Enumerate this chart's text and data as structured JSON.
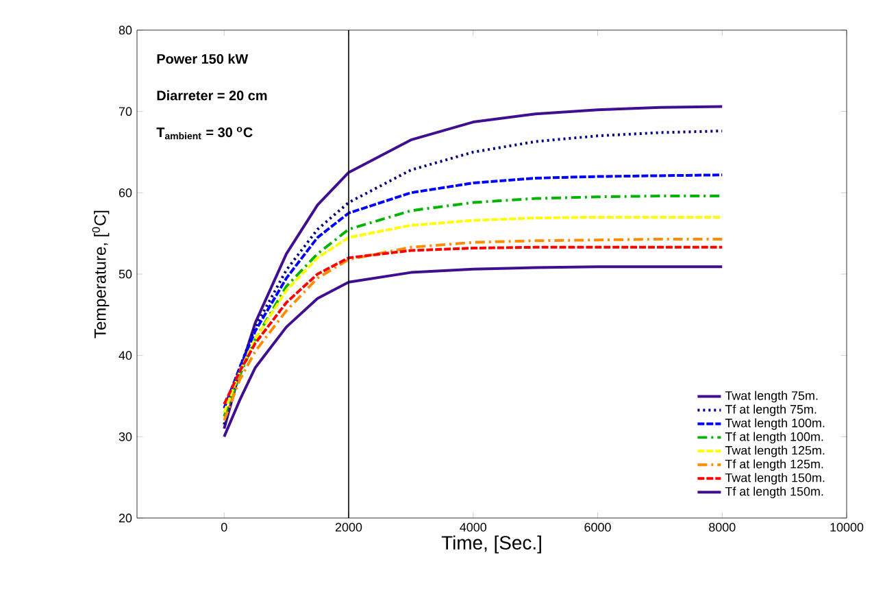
{
  "chart_data": {
    "type": "line",
    "xlabel": "Time, [Sec.]",
    "ylabel": "Temperature, [$^{0}$C]",
    "annotations": [
      "Power 150 kW",
      "Diarreter = 20 cm",
      "T$_{ambient}$ = 30 $^{o}$C"
    ],
    "x": [
      0,
      250,
      500,
      1000,
      1500,
      2000,
      3000,
      4000,
      5000,
      6000,
      7000,
      8000
    ],
    "series": [
      {
        "name": "Twat length 75m.",
        "color": "#3f0f8f",
        "line_style": "solid",
        "values": [
          31,
          38,
          44,
          52.5,
          58.5,
          62.5,
          66.5,
          68.7,
          69.7,
          70.2,
          70.5,
          70.6
        ]
      },
      {
        "name": "Tf at length 75m.",
        "color": "#000080",
        "line_style": "dotted",
        "values": [
          31.5,
          38.5,
          43.5,
          50.5,
          55.5,
          58.8,
          62.8,
          65,
          66.3,
          67,
          67.4,
          67.6
        ]
      },
      {
        "name": "Twat length 100m.",
        "color": "#0000ff",
        "line_style": "dashed",
        "values": [
          33.5,
          38.5,
          43,
          49.5,
          54.5,
          57.5,
          60,
          61.2,
          61.8,
          62,
          62.1,
          62.2
        ]
      },
      {
        "name": "Tf at length 100m.",
        "color": "#00b400",
        "line_style": "dashdot",
        "values": [
          32.5,
          37.5,
          42,
          48.5,
          52.5,
          55.5,
          57.8,
          58.8,
          59.3,
          59.5,
          59.6,
          59.6
        ]
      },
      {
        "name": "Twat length 125m.",
        "color": "#ffff00",
        "line_style": "dashed",
        "values": [
          33,
          38,
          42,
          48,
          52,
          54.5,
          56,
          56.6,
          56.9,
          57,
          57,
          57
        ]
      },
      {
        "name": "Tf at length 125m.",
        "color": "#ff8c00",
        "line_style": "dashdot",
        "values": [
          32,
          37,
          40.5,
          45.5,
          49.5,
          51.8,
          53.3,
          53.9,
          54.1,
          54.2,
          54.3,
          54.3
        ]
      },
      {
        "name": "Twat length 150m.",
        "color": "#ff0000",
        "line_style": "dashed",
        "values": [
          34,
          38,
          41.5,
          46.5,
          50,
          52,
          52.9,
          53.2,
          53.3,
          53.3,
          53.3,
          53.3
        ]
      },
      {
        "name": "Tf at length 150m.",
        "color": "#3f0f8f",
        "line_style": "solid",
        "values": [
          30,
          34.5,
          38.5,
          43.5,
          47,
          49,
          50.2,
          50.6,
          50.8,
          50.9,
          50.9,
          50.9
        ]
      }
    ],
    "ref_lines": [
      {
        "axis": "x",
        "value": 2000,
        "color": "#000000"
      }
    ],
    "xlim": [
      -1400,
      10000
    ],
    "xticks": [
      0,
      2000,
      4000,
      6000,
      8000,
      10000
    ],
    "ylim": [
      20,
      80
    ],
    "yticks": [
      20,
      30,
      40,
      50,
      60,
      70,
      80
    ],
    "grid": false,
    "legend": "bottom right",
    "marker": "none"
  }
}
